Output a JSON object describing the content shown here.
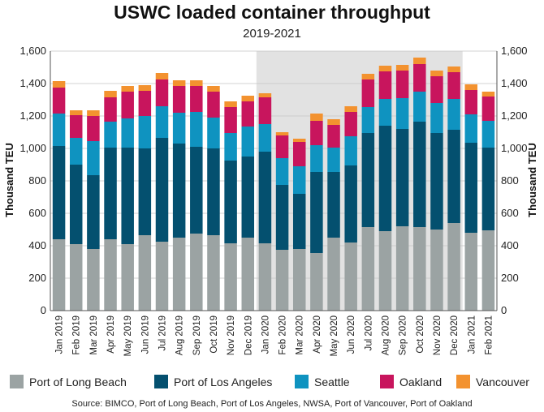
{
  "chart_data": {
    "type": "bar",
    "stacked": true,
    "title": "USWC loaded container throughput",
    "subtitle": "2019-2021",
    "ylabel": "Thousand TEU",
    "ylabel_right": "Thousand TEU",
    "ylim": [
      0,
      1600
    ],
    "yticks": [
      "0",
      "200",
      "400",
      "600",
      "800",
      "1,000",
      "1,200",
      "1,400",
      "1,600"
    ],
    "grid": true,
    "legend_position": "bottom",
    "highlight_range": [
      "Jan 2020",
      "Jan 2021"
    ],
    "source": "Source: BIMCO, Port of Long Beach, Port of Los Angeles, NWSA, Port of Vancouver, Port of Oakland",
    "categories": [
      "Jan 2019",
      "Feb 2019",
      "Mar 2019",
      "Apr 2019",
      "May 2019",
      "Jun 2019",
      "Jul 2019",
      "Aug 2019",
      "Sep 2019",
      "Oct 2019",
      "Nov 2019",
      "Dec 2019",
      "Jan 2020",
      "Feb 2020",
      "Mar 2020",
      "Apr 2020",
      "May 2020",
      "Jun 2020",
      "Jul 2020",
      "Aug 2020",
      "Sep 2020",
      "Oct 2020",
      "Nov 2020",
      "Dec 2020",
      "Jan 2021",
      "Feb 2021"
    ],
    "series": [
      {
        "name": "Port of Long Beach",
        "color": "#9ba3a3",
        "values": [
          440,
          410,
          380,
          440,
          410,
          465,
          425,
          450,
          475,
          465,
          415,
          450,
          415,
          375,
          380,
          355,
          450,
          420,
          515,
          490,
          520,
          515,
          500,
          540,
          480,
          495
        ]
      },
      {
        "name": "Port of Los Angeles",
        "color": "#04506f",
        "values": [
          575,
          490,
          455,
          565,
          595,
          535,
          640,
          580,
          535,
          535,
          510,
          500,
          565,
          400,
          340,
          500,
          405,
          475,
          580,
          650,
          600,
          650,
          595,
          575,
          555,
          510
        ]
      },
      {
        "name": "Seattle",
        "color": "#0f93c0",
        "values": [
          200,
          165,
          210,
          160,
          180,
          200,
          195,
          190,
          215,
          190,
          170,
          185,
          170,
          165,
          170,
          165,
          150,
          180,
          160,
          165,
          190,
          185,
          185,
          190,
          175,
          165
        ]
      },
      {
        "name": "Oakland",
        "color": "#c8155d",
        "values": [
          160,
          140,
          155,
          150,
          165,
          155,
          165,
          165,
          160,
          160,
          160,
          155,
          165,
          140,
          150,
          150,
          140,
          150,
          170,
          170,
          170,
          170,
          165,
          165,
          150,
          150
        ]
      },
      {
        "name": "Vancouver",
        "color": "#f3922f",
        "values": [
          40,
          30,
          35,
          40,
          35,
          35,
          40,
          35,
          35,
          35,
          35,
          35,
          25,
          20,
          20,
          45,
          35,
          35,
          35,
          35,
          35,
          40,
          35,
          35,
          35,
          30
        ]
      }
    ]
  }
}
